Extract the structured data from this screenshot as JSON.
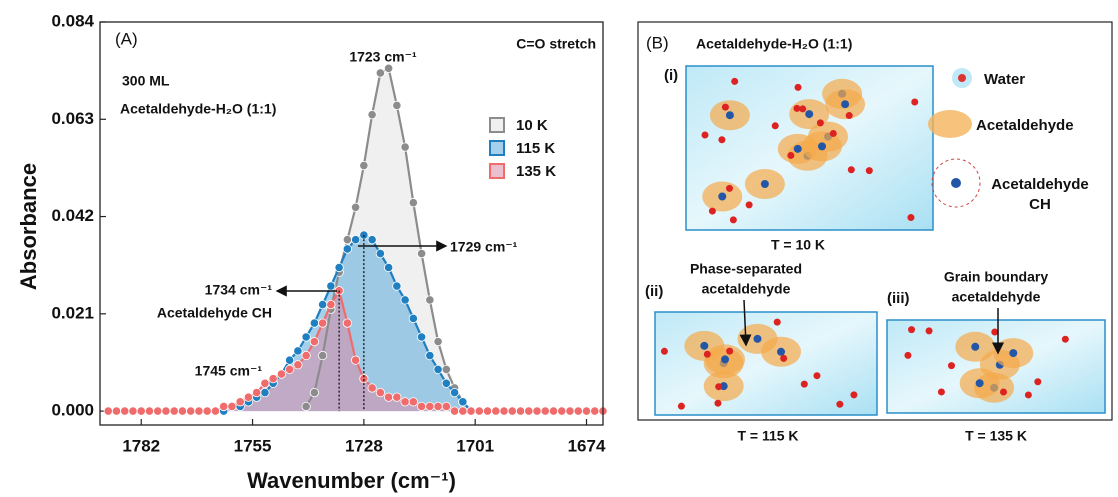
{
  "chart_data": {
    "type": "line",
    "xlabel": "Wavenumber (cm⁻¹)",
    "ylabel": "Absorbance",
    "xlim": [
      1792,
      1670
    ],
    "ylim": [
      -0.003,
      0.084
    ],
    "xticks": [
      1782,
      1755,
      1728,
      1701,
      1674
    ],
    "yticks": [
      {
        "value": 0,
        "label": "0.000"
      },
      0.021,
      0.042,
      0.063,
      0.084
    ],
    "legend": "upper right",
    "x": [
      1790,
      1788,
      1786,
      1784,
      1782,
      1780,
      1778,
      1776,
      1774,
      1772,
      1770,
      1768,
      1766,
      1764,
      1762,
      1760,
      1758,
      1756,
      1754,
      1752,
      1750,
      1748,
      1746,
      1744,
      1742,
      1740,
      1738,
      1736,
      1734,
      1732,
      1730,
      1728,
      1726,
      1724,
      1722,
      1720,
      1718,
      1716,
      1714,
      1712,
      1710,
      1708,
      1706,
      1704,
      1702,
      1700,
      1698,
      1696,
      1694,
      1692,
      1690,
      1688,
      1686,
      1684,
      1682,
      1680,
      1678,
      1676,
      1674,
      1672,
      1670
    ],
    "series": [
      {
        "name": "10 K",
        "color": "#8c8c8c",
        "fill": "#e4e4e4",
        "values": [
          null,
          null,
          null,
          null,
          null,
          null,
          null,
          null,
          null,
          null,
          null,
          null,
          null,
          null,
          null,
          null,
          null,
          null,
          null,
          null,
          null,
          null,
          null,
          null,
          0.001,
          0.004,
          0.012,
          0.022,
          0.03,
          0.037,
          0.044,
          0.053,
          0.064,
          0.073,
          0.074,
          0.066,
          0.057,
          0.045,
          0.034,
          0.024,
          0.015,
          0.009,
          0.005,
          0.002,
          0.0,
          null,
          null,
          null,
          null,
          null,
          null,
          null,
          null,
          null,
          null,
          null,
          null,
          null,
          null,
          null,
          null
        ]
      },
      {
        "name": "115 K",
        "color": "#1f7fc0",
        "fill": "#5aa9dc",
        "values": [
          null,
          null,
          null,
          null,
          null,
          null,
          null,
          null,
          null,
          null,
          null,
          null,
          null,
          null,
          0.0,
          0.001,
          0.001,
          0.002,
          0.003,
          0.004,
          0.006,
          0.008,
          0.011,
          0.013,
          0.016,
          0.019,
          0.023,
          0.027,
          0.031,
          0.035,
          0.037,
          0.038,
          0.037,
          0.034,
          0.031,
          0.027,
          0.024,
          0.02,
          0.016,
          0.012,
          0.009,
          0.006,
          0.004,
          0.002,
          0.0,
          null,
          null,
          null,
          null,
          null,
          null,
          null,
          null,
          null,
          null,
          null,
          null,
          null,
          null,
          null,
          null
        ]
      },
      {
        "name": "135 K",
        "color": "#f06b6b",
        "fill": "#d88aa6",
        "values": [
          0,
          0,
          0,
          0,
          0,
          0,
          0,
          0,
          0,
          0,
          0,
          0,
          0,
          0,
          0.001,
          0.001,
          0.002,
          0.003,
          0.004,
          0.006,
          0.007,
          0.008,
          0.009,
          0.01,
          0.012,
          0.015,
          0.019,
          0.023,
          0.026,
          0.019,
          0.011,
          0.007,
          0.005,
          0.004,
          0.003,
          0.003,
          0.002,
          0.002,
          0.001,
          0.001,
          0.001,
          0.001,
          0,
          0,
          0,
          0,
          0,
          0,
          0,
          0,
          0,
          0,
          0,
          0,
          0,
          0,
          0,
          0,
          0,
          0,
          0
        ]
      }
    ],
    "annotations": [
      "(A)",
      "C=O stretch",
      "300 ML",
      "Acetaldehyde-H₂O (1:1)",
      "1723 cm⁻¹",
      "1729 cm⁻¹",
      "1734 cm⁻¹",
      "Acetaldehyde CH",
      "1745 cm⁻¹"
    ]
  },
  "panel_b": {
    "label": "(B)",
    "title": "Acetaldehyde-H₂O (1:1)",
    "panels": [
      {
        "label": "(i)",
        "caption": "T = 10 K"
      },
      {
        "label": "(ii)",
        "note": [
          "Phase-separated",
          "acetaldehyde"
        ],
        "caption": "T = 115 K"
      },
      {
        "label": "(iii)",
        "note": [
          "Grain boundary",
          "acetaldehyde"
        ],
        "caption": "T = 135 K"
      }
    ],
    "legend": [
      "Water",
      "Acetaldehyde",
      "Acetaldehyde",
      "CH"
    ]
  }
}
